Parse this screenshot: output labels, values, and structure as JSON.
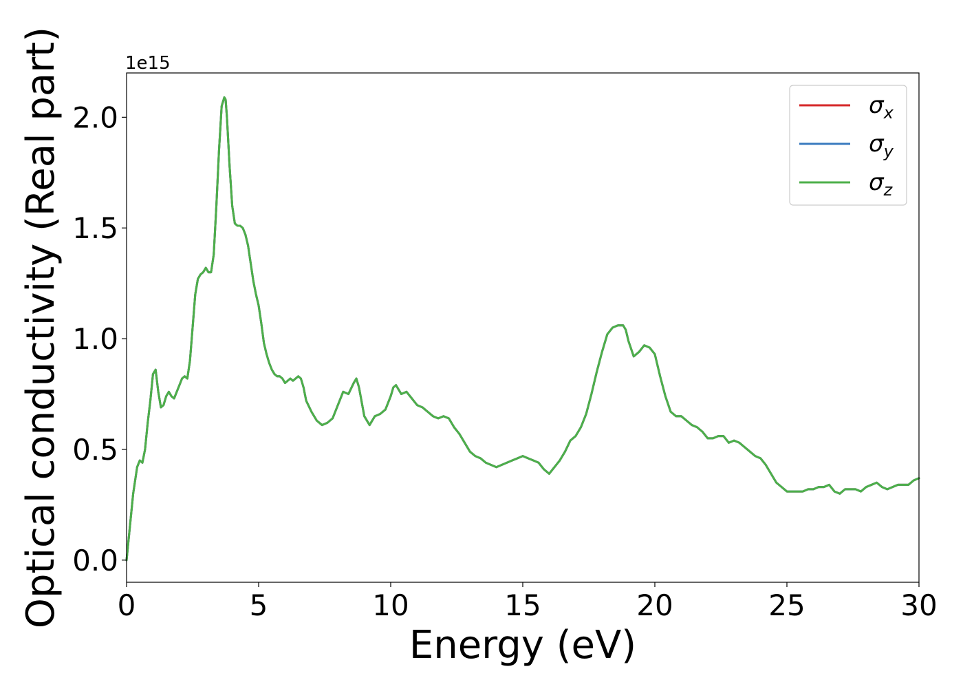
{
  "chart_data": {
    "type": "line",
    "title": "",
    "xlabel": "Energy (eV)",
    "ylabel": "Optical conductivity (Real part)",
    "y_offset_label": "1e15",
    "xlim": [
      0,
      30
    ],
    "ylim": [
      -0.1,
      2.2
    ],
    "x_ticks": [
      0,
      5,
      10,
      15,
      20,
      25,
      30
    ],
    "x_tick_labels": [
      "0",
      "5",
      "10",
      "15",
      "20",
      "25",
      "30"
    ],
    "y_ticks": [
      0.0,
      0.5,
      1.0,
      1.5,
      2.0
    ],
    "y_tick_labels": [
      "0.0",
      "0.5",
      "1.0",
      "1.5",
      "2.0"
    ],
    "grid": false,
    "legend_position": "top-right",
    "legend": [
      {
        "symbol": "σ",
        "subscript": "x",
        "color": "#d62728"
      },
      {
        "symbol": "σ",
        "subscript": "y",
        "color": "#3a7bbf"
      },
      {
        "symbol": "σ",
        "subscript": "z",
        "color": "#4daf4a"
      }
    ],
    "x": [
      0,
      0.1,
      0.25,
      0.4,
      0.5,
      0.6,
      0.7,
      0.8,
      0.9,
      1.0,
      1.1,
      1.2,
      1.3,
      1.4,
      1.5,
      1.6,
      1.7,
      1.8,
      1.9,
      2.0,
      2.1,
      2.2,
      2.3,
      2.4,
      2.5,
      2.6,
      2.7,
      2.8,
      2.9,
      3.0,
      3.1,
      3.2,
      3.3,
      3.4,
      3.5,
      3.6,
      3.7,
      3.75,
      3.8,
      3.9,
      4.0,
      4.1,
      4.2,
      4.3,
      4.4,
      4.5,
      4.6,
      4.7,
      4.8,
      4.9,
      5.0,
      5.1,
      5.2,
      5.3,
      5.4,
      5.5,
      5.6,
      5.7,
      5.8,
      5.9,
      6.0,
      6.1,
      6.2,
      6.3,
      6.4,
      6.5,
      6.6,
      6.7,
      6.8,
      7.0,
      7.2,
      7.4,
      7.6,
      7.8,
      8.0,
      8.2,
      8.4,
      8.6,
      8.7,
      8.8,
      9.0,
      9.2,
      9.4,
      9.6,
      9.8,
      10.0,
      10.1,
      10.2,
      10.4,
      10.6,
      10.8,
      11.0,
      11.2,
      11.4,
      11.6,
      11.8,
      12.0,
      12.2,
      12.4,
      12.6,
      12.8,
      13.0,
      13.2,
      13.4,
      13.6,
      13.8,
      14.0,
      14.2,
      14.4,
      14.6,
      14.8,
      15.0,
      15.2,
      15.4,
      15.6,
      15.8,
      16.0,
      16.2,
      16.4,
      16.6,
      16.8,
      17.0,
      17.2,
      17.4,
      17.6,
      17.8,
      18.0,
      18.2,
      18.4,
      18.6,
      18.8,
      18.9,
      19.0,
      19.2,
      19.4,
      19.6,
      19.8,
      20.0,
      20.2,
      20.4,
      20.6,
      20.8,
      21.0,
      21.2,
      21.4,
      21.6,
      21.8,
      22.0,
      22.2,
      22.4,
      22.6,
      22.8,
      23.0,
      23.2,
      23.4,
      23.6,
      23.8,
      24.0,
      24.2,
      24.4,
      24.6,
      24.8,
      25.0,
      25.2,
      25.4,
      25.6,
      25.8,
      26.0,
      26.2,
      26.4,
      26.6,
      26.8,
      27.0,
      27.2,
      27.4,
      27.6,
      27.8,
      28.0,
      28.2,
      28.4,
      28.6,
      28.8,
      29.0,
      29.2,
      29.4,
      29.6,
      29.8,
      30.0
    ],
    "series": [
      {
        "name": "σx",
        "color": "#d62728",
        "values": [
          0.0,
          0.12,
          0.3,
          0.42,
          0.45,
          0.44,
          0.5,
          0.62,
          0.72,
          0.84,
          0.86,
          0.76,
          0.69,
          0.7,
          0.74,
          0.76,
          0.74,
          0.73,
          0.76,
          0.79,
          0.82,
          0.83,
          0.82,
          0.9,
          1.05,
          1.2,
          1.27,
          1.29,
          1.3,
          1.32,
          1.3,
          1.3,
          1.38,
          1.6,
          1.85,
          2.05,
          2.09,
          2.08,
          2.0,
          1.78,
          1.6,
          1.52,
          1.51,
          1.51,
          1.5,
          1.47,
          1.42,
          1.34,
          1.26,
          1.2,
          1.15,
          1.07,
          0.98,
          0.93,
          0.89,
          0.86,
          0.84,
          0.83,
          0.83,
          0.82,
          0.8,
          0.81,
          0.82,
          0.81,
          0.82,
          0.83,
          0.82,
          0.78,
          0.72,
          0.67,
          0.63,
          0.61,
          0.62,
          0.64,
          0.7,
          0.76,
          0.75,
          0.8,
          0.82,
          0.78,
          0.65,
          0.61,
          0.65,
          0.66,
          0.68,
          0.74,
          0.78,
          0.79,
          0.75,
          0.76,
          0.73,
          0.7,
          0.69,
          0.67,
          0.65,
          0.64,
          0.65,
          0.64,
          0.6,
          0.57,
          0.53,
          0.49,
          0.47,
          0.46,
          0.44,
          0.43,
          0.42,
          0.43,
          0.44,
          0.45,
          0.46,
          0.47,
          0.46,
          0.45,
          0.44,
          0.41,
          0.39,
          0.42,
          0.45,
          0.49,
          0.54,
          0.56,
          0.6,
          0.66,
          0.75,
          0.85,
          0.94,
          1.02,
          1.05,
          1.06,
          1.06,
          1.04,
          0.99,
          0.92,
          0.94,
          0.97,
          0.96,
          0.93,
          0.83,
          0.74,
          0.67,
          0.65,
          0.65,
          0.63,
          0.61,
          0.6,
          0.58,
          0.55,
          0.55,
          0.56,
          0.56,
          0.53,
          0.54,
          0.53,
          0.51,
          0.49,
          0.47,
          0.46,
          0.43,
          0.39,
          0.35,
          0.33,
          0.31,
          0.31,
          0.31,
          0.31,
          0.32,
          0.32,
          0.33,
          0.33,
          0.34,
          0.31,
          0.3,
          0.32,
          0.32,
          0.32,
          0.31,
          0.33,
          0.34,
          0.35,
          0.33,
          0.32,
          0.33,
          0.34,
          0.34,
          0.34,
          0.36,
          0.37
        ]
      },
      {
        "name": "σy",
        "color": "#3a7bbf",
        "values": [
          0.0,
          0.12,
          0.3,
          0.42,
          0.45,
          0.44,
          0.5,
          0.62,
          0.72,
          0.84,
          0.86,
          0.76,
          0.69,
          0.7,
          0.74,
          0.76,
          0.74,
          0.73,
          0.76,
          0.79,
          0.82,
          0.83,
          0.82,
          0.9,
          1.05,
          1.2,
          1.27,
          1.29,
          1.3,
          1.32,
          1.3,
          1.3,
          1.38,
          1.6,
          1.85,
          2.05,
          2.09,
          2.08,
          2.0,
          1.78,
          1.6,
          1.52,
          1.51,
          1.51,
          1.5,
          1.47,
          1.42,
          1.34,
          1.26,
          1.2,
          1.15,
          1.07,
          0.98,
          0.93,
          0.89,
          0.86,
          0.84,
          0.83,
          0.83,
          0.82,
          0.8,
          0.81,
          0.82,
          0.81,
          0.82,
          0.83,
          0.82,
          0.78,
          0.72,
          0.67,
          0.63,
          0.61,
          0.62,
          0.64,
          0.7,
          0.76,
          0.75,
          0.8,
          0.82,
          0.78,
          0.65,
          0.61,
          0.65,
          0.66,
          0.68,
          0.74,
          0.78,
          0.79,
          0.75,
          0.76,
          0.73,
          0.7,
          0.69,
          0.67,
          0.65,
          0.64,
          0.65,
          0.64,
          0.6,
          0.57,
          0.53,
          0.49,
          0.47,
          0.46,
          0.44,
          0.43,
          0.42,
          0.43,
          0.44,
          0.45,
          0.46,
          0.47,
          0.46,
          0.45,
          0.44,
          0.41,
          0.39,
          0.42,
          0.45,
          0.49,
          0.54,
          0.56,
          0.6,
          0.66,
          0.75,
          0.85,
          0.94,
          1.02,
          1.05,
          1.06,
          1.06,
          1.04,
          0.99,
          0.92,
          0.94,
          0.97,
          0.96,
          0.93,
          0.83,
          0.74,
          0.67,
          0.65,
          0.65,
          0.63,
          0.61,
          0.6,
          0.58,
          0.55,
          0.55,
          0.56,
          0.56,
          0.53,
          0.54,
          0.53,
          0.51,
          0.49,
          0.47,
          0.46,
          0.43,
          0.39,
          0.35,
          0.33,
          0.31,
          0.31,
          0.31,
          0.31,
          0.32,
          0.32,
          0.33,
          0.33,
          0.34,
          0.31,
          0.3,
          0.32,
          0.32,
          0.32,
          0.31,
          0.33,
          0.34,
          0.35,
          0.33,
          0.32,
          0.33,
          0.34,
          0.34,
          0.34,
          0.36,
          0.37
        ]
      },
      {
        "name": "σz",
        "color": "#4daf4a",
        "values": [
          0.0,
          0.12,
          0.3,
          0.42,
          0.45,
          0.44,
          0.5,
          0.62,
          0.72,
          0.84,
          0.86,
          0.76,
          0.69,
          0.7,
          0.74,
          0.76,
          0.74,
          0.73,
          0.76,
          0.79,
          0.82,
          0.83,
          0.82,
          0.9,
          1.05,
          1.2,
          1.27,
          1.29,
          1.3,
          1.32,
          1.3,
          1.3,
          1.38,
          1.6,
          1.85,
          2.05,
          2.09,
          2.08,
          2.0,
          1.78,
          1.6,
          1.52,
          1.51,
          1.51,
          1.5,
          1.47,
          1.42,
          1.34,
          1.26,
          1.2,
          1.15,
          1.07,
          0.98,
          0.93,
          0.89,
          0.86,
          0.84,
          0.83,
          0.83,
          0.82,
          0.8,
          0.81,
          0.82,
          0.81,
          0.82,
          0.83,
          0.82,
          0.78,
          0.72,
          0.67,
          0.63,
          0.61,
          0.62,
          0.64,
          0.7,
          0.76,
          0.75,
          0.8,
          0.82,
          0.78,
          0.65,
          0.61,
          0.65,
          0.66,
          0.68,
          0.74,
          0.78,
          0.79,
          0.75,
          0.76,
          0.73,
          0.7,
          0.69,
          0.67,
          0.65,
          0.64,
          0.65,
          0.64,
          0.6,
          0.57,
          0.53,
          0.49,
          0.47,
          0.46,
          0.44,
          0.43,
          0.42,
          0.43,
          0.44,
          0.45,
          0.46,
          0.47,
          0.46,
          0.45,
          0.44,
          0.41,
          0.39,
          0.42,
          0.45,
          0.49,
          0.54,
          0.56,
          0.6,
          0.66,
          0.75,
          0.85,
          0.94,
          1.02,
          1.05,
          1.06,
          1.06,
          1.04,
          0.99,
          0.92,
          0.94,
          0.97,
          0.96,
          0.93,
          0.83,
          0.74,
          0.67,
          0.65,
          0.65,
          0.63,
          0.61,
          0.6,
          0.58,
          0.55,
          0.55,
          0.56,
          0.56,
          0.53,
          0.54,
          0.53,
          0.51,
          0.49,
          0.47,
          0.46,
          0.43,
          0.39,
          0.35,
          0.33,
          0.31,
          0.31,
          0.31,
          0.31,
          0.32,
          0.32,
          0.33,
          0.33,
          0.34,
          0.31,
          0.3,
          0.32,
          0.32,
          0.32,
          0.31,
          0.33,
          0.34,
          0.35,
          0.33,
          0.32,
          0.33,
          0.34,
          0.34,
          0.34,
          0.36,
          0.37
        ]
      }
    ]
  }
}
